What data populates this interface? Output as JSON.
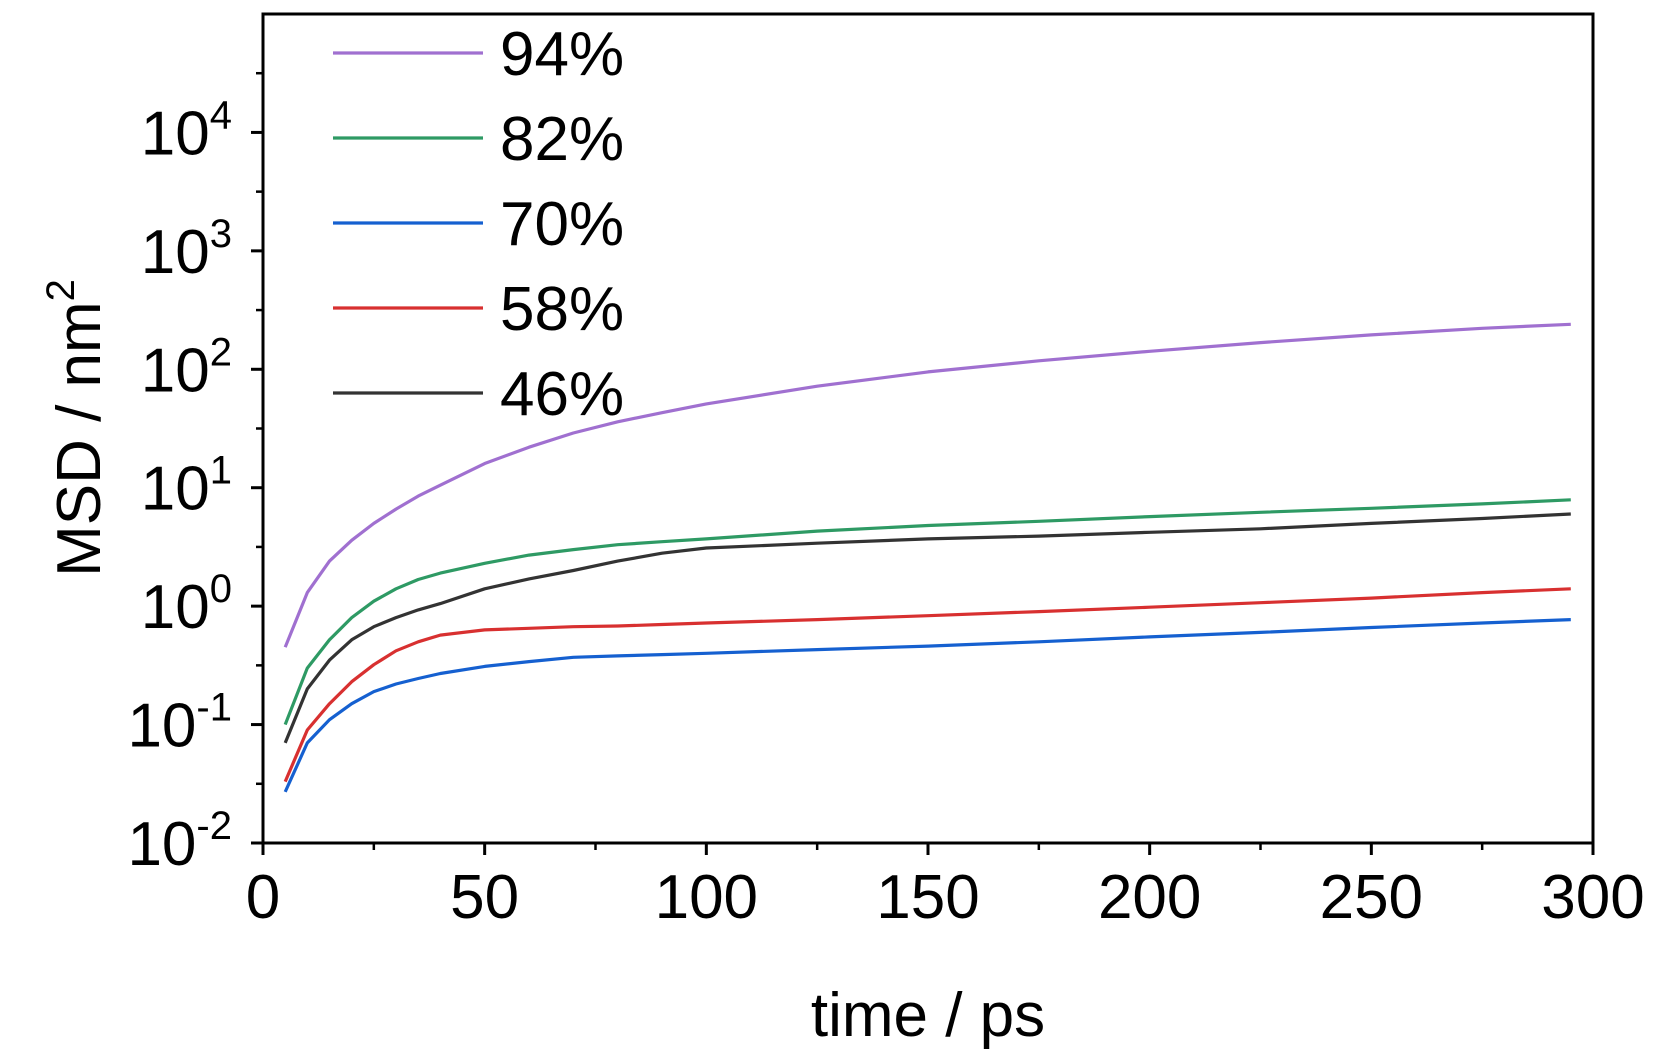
{
  "chart_data": {
    "type": "line",
    "xlabel": "time / ps",
    "ylabel": "MSD / nm",
    "ylabel_superscript": "2",
    "xlim": [
      0,
      300
    ],
    "ylim": [
      0.01,
      100000
    ],
    "yscale": "log",
    "xticks": [
      0,
      50,
      100,
      150,
      200,
      250,
      300
    ],
    "xtick_labels": [
      "0",
      "50",
      "100",
      "150",
      "200",
      "250",
      "300"
    ],
    "yticks": [
      0.01,
      0.1,
      1,
      10,
      100,
      1000,
      10000
    ],
    "ytick_labels": [
      {
        "base": "10",
        "exp": "-2"
      },
      {
        "base": "10",
        "exp": "-1"
      },
      {
        "base": "10",
        "exp": "0"
      },
      {
        "base": "10",
        "exp": "1"
      },
      {
        "base": "10",
        "exp": "2"
      },
      {
        "base": "10",
        "exp": "3"
      },
      {
        "base": "10",
        "exp": "4"
      }
    ],
    "grid": false,
    "legend_position": "top-left",
    "x": [
      5,
      10,
      15,
      20,
      25,
      30,
      35,
      40,
      50,
      60,
      70,
      80,
      90,
      100,
      125,
      150,
      175,
      200,
      225,
      250,
      275,
      295
    ],
    "series": [
      {
        "name": "94%",
        "color": "#a070d0",
        "values": [
          0.45,
          1.3,
          2.4,
          3.6,
          5.0,
          6.6,
          8.5,
          10.5,
          16,
          22,
          29,
          36,
          43,
          51,
          72,
          95,
          118,
          142,
          168,
          195,
          222,
          240
        ]
      },
      {
        "name": "82%",
        "color": "#2e9a64",
        "values": [
          0.1,
          0.3,
          0.52,
          0.8,
          1.1,
          1.4,
          1.68,
          1.9,
          2.3,
          2.7,
          3.0,
          3.3,
          3.5,
          3.7,
          4.3,
          4.8,
          5.2,
          5.7,
          6.2,
          6.7,
          7.3,
          7.9
        ]
      },
      {
        "name": "70%",
        "color": "#1560d0",
        "values": [
          0.027,
          0.07,
          0.11,
          0.15,
          0.19,
          0.22,
          0.245,
          0.27,
          0.31,
          0.34,
          0.37,
          0.38,
          0.39,
          0.4,
          0.43,
          0.46,
          0.5,
          0.55,
          0.6,
          0.66,
          0.72,
          0.77
        ]
      },
      {
        "name": "58%",
        "color": "#d83030",
        "values": [
          0.033,
          0.09,
          0.15,
          0.23,
          0.32,
          0.42,
          0.5,
          0.57,
          0.63,
          0.65,
          0.67,
          0.68,
          0.7,
          0.72,
          0.77,
          0.83,
          0.9,
          0.98,
          1.07,
          1.17,
          1.3,
          1.4
        ]
      },
      {
        "name": "46%",
        "color": "#333333",
        "values": [
          0.07,
          0.2,
          0.35,
          0.52,
          0.67,
          0.8,
          0.93,
          1.05,
          1.4,
          1.7,
          2.0,
          2.4,
          2.8,
          3.1,
          3.4,
          3.7,
          3.9,
          4.2,
          4.5,
          5.0,
          5.5,
          6.0
        ]
      }
    ]
  }
}
